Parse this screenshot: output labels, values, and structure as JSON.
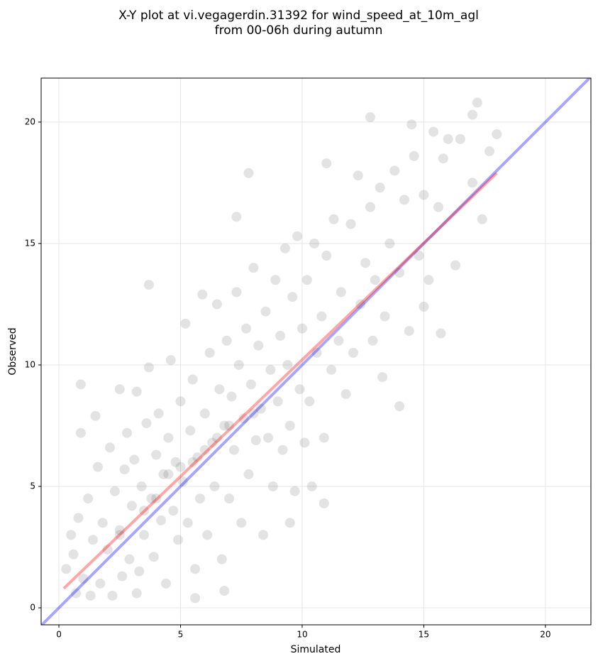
{
  "chart_data": {
    "type": "scatter",
    "title": [
      "X-Y plot at vi.vegagerdin.31392 for wind_speed_at_10m_agl",
      "from 00-06h during autumn"
    ],
    "xlabel": "Simulated",
    "ylabel": "Observed",
    "xlim": [
      -0.73,
      21.87
    ],
    "ylim": [
      -0.7,
      21.81
    ],
    "xticks": [
      0,
      5,
      10,
      15,
      20
    ],
    "yticks": [
      0,
      5,
      10,
      15,
      20
    ],
    "grid": true,
    "points": {
      "color": "#444444",
      "x": [
        0.9,
        0.9,
        3.7,
        7.8,
        7.3,
        11,
        12.8,
        17.2,
        17.0,
        14.5,
        18,
        17.7,
        17.4,
        15.7,
        14,
        10.9,
        10.4,
        9.5,
        5.6,
        6.8,
        3.2,
        1.5,
        2.5,
        16.3,
        15,
        13.3,
        0.3,
        0.5,
        0.6,
        0.7,
        0.8,
        1.0,
        1.2,
        1.3,
        1.4,
        1.6,
        1.7,
        1.8,
        2.0,
        2.1,
        2.2,
        2.3,
        2.5,
        2.6,
        2.7,
        2.8,
        2.9,
        3.0,
        3.1,
        3.2,
        3.3,
        3.4,
        3.5,
        3.6,
        3.7,
        3.8,
        3.9,
        4.0,
        4.1,
        4.2,
        4.3,
        4.4,
        4.5,
        4.6,
        4.7,
        4.8,
        4.9,
        5.0,
        5.1,
        5.2,
        5.3,
        5.4,
        5.5,
        5.6,
        5.7,
        5.8,
        5.9,
        6.0,
        6.1,
        6.2,
        6.3,
        6.4,
        6.5,
        6.6,
        6.7,
        6.8,
        6.9,
        7.0,
        7.1,
        7.2,
        7.3,
        7.4,
        7.5,
        7.6,
        7.7,
        7.8,
        7.9,
        8.0,
        8.1,
        8.2,
        8.3,
        8.4,
        8.5,
        8.6,
        8.7,
        8.8,
        8.9,
        9.0,
        9.1,
        9.2,
        9.3,
        9.4,
        9.5,
        9.6,
        9.7,
        9.8,
        9.9,
        10.0,
        10.1,
        10.2,
        10.3,
        10.5,
        10.6,
        10.8,
        10.9,
        11.0,
        11.2,
        11.3,
        11.5,
        11.6,
        11.8,
        12.0,
        12.1,
        12.3,
        12.4,
        12.6,
        12.8,
        12.9,
        13.0,
        13.2,
        13.4,
        13.6,
        13.8,
        14.0,
        14.2,
        14.4,
        14.6,
        14.8,
        15.0,
        15.2,
        15.4,
        15.6,
        15.8,
        16.0,
        16.5,
        17.0,
        5.0,
        5.5,
        4.5,
        6.0,
        3.5,
        2.5,
        7.0,
        8.0,
        6.5,
        4.0
      ],
      "values": [
        9.2,
        7.2,
        13.3,
        17.9,
        16.1,
        18.3,
        20.2,
        20.8,
        20.3,
        19.9,
        19.5,
        18.8,
        16.0,
        11.3,
        8.3,
        4.3,
        5.0,
        3.5,
        0.4,
        0.7,
        0.6,
        7.9,
        9.0,
        14.1,
        12.4,
        9.5,
        1.6,
        3.0,
        2.2,
        0.6,
        3.7,
        1.2,
        4.5,
        0.5,
        2.8,
        5.8,
        1.0,
        3.5,
        2.4,
        6.6,
        0.5,
        4.8,
        3.2,
        1.3,
        5.7,
        7.2,
        2.0,
        4.2,
        6.1,
        8.9,
        1.5,
        5.0,
        3.0,
        7.6,
        9.9,
        4.5,
        2.1,
        6.3,
        8.0,
        3.6,
        5.5,
        1.0,
        7.0,
        10.2,
        4.0,
        6.0,
        2.8,
        8.5,
        5.2,
        11.7,
        3.5,
        7.3,
        9.4,
        1.6,
        6.2,
        4.5,
        12.9,
        8.0,
        3.0,
        10.5,
        6.8,
        5.0,
        12.5,
        9.0,
        2.0,
        7.5,
        11.0,
        4.5,
        8.7,
        6.5,
        13.0,
        10.0,
        3.5,
        7.8,
        11.5,
        5.5,
        9.2,
        14.0,
        6.9,
        10.8,
        8.2,
        3.0,
        12.2,
        7.0,
        9.8,
        5.0,
        13.5,
        8.5,
        11.2,
        6.5,
        14.8,
        10.0,
        7.5,
        12.8,
        4.8,
        15.3,
        9.0,
        11.5,
        6.8,
        13.5,
        8.5,
        15.0,
        10.5,
        12.0,
        7.0,
        14.5,
        9.8,
        16.0,
        11.0,
        13.0,
        8.8,
        15.8,
        10.5,
        17.8,
        12.5,
        14.2,
        16.5,
        11.0,
        13.5,
        17.3,
        12.0,
        15.0,
        18.0,
        13.8,
        16.8,
        11.4,
        18.6,
        14.5,
        17.0,
        13.5,
        19.6,
        16.5,
        18.5,
        19.3,
        19.3,
        17.5,
        5.8,
        6.0,
        5.5,
        6.5,
        4.0,
        3.0,
        7.5,
        8.0,
        7.0,
        4.5
      ]
    },
    "lines": [
      {
        "color": "#0000ff",
        "x": [
          -0.73,
          21.87
        ],
        "values": [
          -0.73,
          21.87
        ]
      },
      {
        "color": "#ff0000",
        "x": [
          0.2,
          18.0
        ],
        "values": [
          0.8,
          17.9
        ]
      }
    ]
  }
}
